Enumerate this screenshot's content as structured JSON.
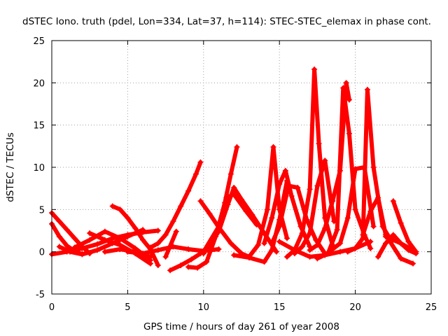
{
  "chart_data": {
    "type": "scatter",
    "title": "dSTEC Iono. truth (pdel, Lon=334, Lat=37, h=114): STEC-STEC_elemax in phase cont.",
    "xlabel": "GPS time / hours of day 261 of year 2008",
    "ylabel": "dSTEC  / TECUs",
    "xlim": [
      0,
      25
    ],
    "ylim": [
      -5,
      25
    ],
    "xticks": [
      0,
      5,
      10,
      15,
      20,
      25
    ],
    "yticks": [
      -5,
      0,
      5,
      10,
      15,
      20,
      25
    ],
    "xtick_labels": [
      "0",
      "5",
      "10",
      "15",
      "20",
      "25"
    ],
    "ytick_labels": [
      "-5",
      "0",
      "5",
      "10",
      "15",
      "20",
      "25"
    ],
    "grid": true,
    "marker": "plus",
    "color": "#ff0000",
    "series": [
      {
        "x": [
          0.0,
          0.5,
          1.0,
          1.5,
          2.0,
          2.5
        ],
        "y": [
          4.6,
          3.6,
          2.6,
          1.6,
          0.6,
          -0.2
        ]
      },
      {
        "x": [
          0.0,
          0.5,
          1.0,
          1.5,
          2.0
        ],
        "y": [
          3.3,
          1.8,
          0.7,
          0.1,
          -0.3
        ]
      },
      {
        "x": [
          0.0,
          1.0,
          2.0,
          3.0,
          4.0,
          5.0,
          6.0,
          7.0
        ],
        "y": [
          -0.3,
          0.0,
          0.4,
          0.9,
          1.6,
          2.0,
          2.3,
          2.5
        ]
      },
      {
        "x": [
          0.5,
          1.2,
          2.0,
          3.0,
          4.0,
          5.0,
          6.0
        ],
        "y": [
          0.6,
          0.0,
          -0.3,
          0.2,
          1.0,
          1.8,
          2.6
        ]
      },
      {
        "x": [
          1.5,
          2.5,
          3.5,
          4.5,
          5.5,
          6.5
        ],
        "y": [
          0.5,
          1.4,
          2.4,
          1.6,
          0.4,
          -1.0
        ]
      },
      {
        "x": [
          2.5,
          3.5,
          4.5,
          5.5,
          6.5
        ],
        "y": [
          2.2,
          1.4,
          0.8,
          -0.2,
          -1.4
        ]
      },
      {
        "x": [
          3.5,
          4.5,
          5.5,
          6.5
        ],
        "y": [
          0.0,
          0.3,
          0.0,
          -0.6
        ]
      },
      {
        "x": [
          4.0,
          4.5,
          5.0,
          5.5,
          6.0,
          6.5,
          7.0
        ],
        "y": [
          5.4,
          5.0,
          4.0,
          2.8,
          1.4,
          0.3,
          -1.6
        ]
      },
      {
        "x": [
          5.0,
          6.0,
          7.0,
          8.0,
          9.0,
          10.0,
          11.0
        ],
        "y": [
          0.0,
          -0.2,
          0.2,
          0.6,
          0.3,
          0.1,
          0.3
        ]
      },
      {
        "x": [
          6.5,
          7.0,
          7.5,
          8.0,
          8.5,
          9.0,
          9.5,
          9.8
        ],
        "y": [
          0.5,
          1.0,
          2.0,
          3.6,
          5.4,
          7.2,
          9.2,
          10.6
        ]
      },
      {
        "x": [
          7.5,
          8.2
        ],
        "y": [
          -0.6,
          2.4
        ]
      },
      {
        "x": [
          7.8,
          8.5,
          9.2,
          9.8
        ],
        "y": [
          -2.2,
          -1.6,
          -0.9,
          -0.2
        ]
      },
      {
        "x": [
          9.0,
          9.6,
          10.2,
          10.8,
          11.4,
          11.8,
          12.2
        ],
        "y": [
          -1.8,
          -1.9,
          -1.2,
          1.8,
          5.8,
          9.2,
          12.4
        ]
      },
      {
        "x": [
          9.8,
          10.4,
          11.0,
          11.8,
          12.5,
          13.0
        ],
        "y": [
          6.0,
          4.5,
          2.9,
          1.0,
          -0.2,
          -0.6
        ]
      },
      {
        "x": [
          10.0,
          11.0,
          11.6,
          12.0,
          12.5,
          13.2,
          14.0,
          14.8
        ],
        "y": [
          -0.2,
          2.4,
          5.6,
          7.6,
          6.2,
          4.4,
          2.2,
          0.0
        ]
      },
      {
        "x": [
          10.0,
          11.0,
          11.5,
          12.0,
          12.8,
          13.5
        ],
        "y": [
          0.0,
          3.0,
          6.4,
          6.8,
          4.8,
          3.2
        ]
      },
      {
        "x": [
          12.0,
          13.0,
          14.0,
          14.5,
          15.0,
          15.5
        ],
        "y": [
          -0.4,
          -0.7,
          -1.2,
          0.2,
          3.8,
          8.4
        ]
      },
      {
        "x": [
          13.0,
          13.6,
          14.2,
          14.6,
          15.0,
          15.5
        ],
        "y": [
          -0.6,
          0.8,
          5.0,
          12.4,
          5.0,
          1.6
        ]
      },
      {
        "x": [
          14.0,
          14.5,
          15.0,
          15.4,
          15.8,
          16.4,
          17.0
        ],
        "y": [
          1.0,
          4.0,
          8.0,
          9.6,
          6.6,
          3.0,
          0.6
        ]
      },
      {
        "x": [
          14.5,
          15.0,
          15.6,
          16.2,
          16.8,
          17.4,
          18.0
        ],
        "y": [
          1.0,
          3.0,
          7.8,
          7.6,
          3.8,
          1.4,
          -0.2
        ]
      },
      {
        "x": [
          15.0,
          16.0,
          17.0,
          18.0,
          19.0,
          20.0,
          21.0
        ],
        "y": [
          1.2,
          0.2,
          -0.6,
          -0.4,
          0.0,
          0.4,
          1.2
        ]
      },
      {
        "x": [
          15.5,
          16.0,
          16.5,
          17.0,
          17.3,
          17.6,
          18.0,
          18.5
        ],
        "y": [
          -0.6,
          0.2,
          2.2,
          7.4,
          21.6,
          12.8,
          4.0,
          0.8
        ]
      },
      {
        "x": [
          16.0,
          16.5,
          17.0,
          17.5,
          18.0,
          18.6
        ],
        "y": [
          -0.2,
          0.6,
          2.2,
          7.8,
          10.8,
          3.6
        ]
      },
      {
        "x": [
          17.0,
          17.5,
          18.0,
          18.5,
          19.0,
          19.4,
          19.6
        ],
        "y": [
          0.2,
          0.8,
          2.8,
          6.0,
          9.6,
          20.0,
          18.0
        ]
      },
      {
        "x": [
          17.5,
          18.2,
          18.8,
          19.2,
          19.6,
          20.0,
          20.6,
          21.0
        ],
        "y": [
          -0.8,
          -0.2,
          2.6,
          19.4,
          14.0,
          5.0,
          2.0,
          0.4
        ]
      },
      {
        "x": [
          18.0,
          19.0,
          19.5,
          20.0,
          20.6,
          21.2
        ],
        "y": [
          -0.4,
          1.0,
          4.0,
          9.8,
          10.0,
          3.0
        ]
      },
      {
        "x": [
          19.5,
          20.0,
          20.5,
          20.8,
          21.2,
          21.8,
          22.4
        ],
        "y": [
          0.0,
          0.4,
          1.6,
          19.2,
          10.0,
          3.0,
          1.2
        ]
      },
      {
        "x": [
          20.5,
          21.0,
          21.5,
          22.0,
          23.0,
          23.8
        ],
        "y": [
          2.0,
          4.8,
          6.4,
          2.0,
          -0.8,
          -1.4
        ]
      },
      {
        "x": [
          21.5,
          22.0,
          22.5,
          23.0,
          23.5,
          24.0
        ],
        "y": [
          -0.6,
          1.0,
          2.0,
          1.0,
          0.2,
          -0.2
        ]
      },
      {
        "x": [
          22.5,
          23.0,
          23.5,
          24.0
        ],
        "y": [
          6.0,
          3.4,
          1.2,
          0.0
        ]
      },
      {
        "x": [
          22.0,
          23.0,
          24.0
        ],
        "y": [
          1.8,
          1.0,
          0.0
        ]
      }
    ]
  }
}
